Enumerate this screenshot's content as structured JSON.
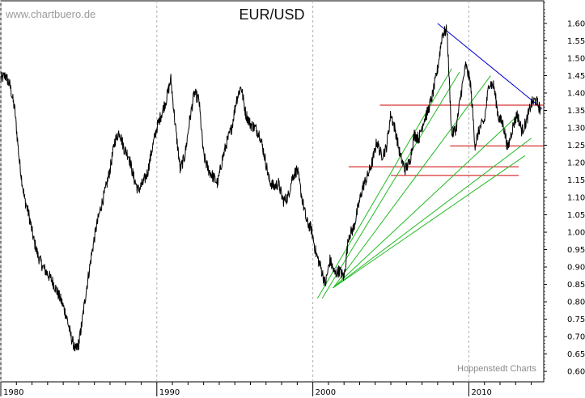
{
  "watermark": "www.chartbuero.de",
  "credit": "Hoppenstedt Charts",
  "chart_data": {
    "type": "line",
    "title": "EUR/USD",
    "xlabel": "",
    "ylabel": "",
    "x_ticks": [
      1980,
      1990,
      2000,
      2010
    ],
    "y_ticks": [
      0.6,
      0.65,
      0.7,
      0.75,
      0.8,
      0.85,
      0.9,
      0.95,
      1.0,
      1.05,
      1.1,
      1.15,
      1.2,
      1.25,
      1.3,
      1.35,
      1.4,
      1.45,
      1.5,
      1.55,
      1.6
    ],
    "xlim": [
      1980,
      2014.8
    ],
    "ylim": [
      0.57,
      1.665
    ],
    "grid": "vertical dashed at decades",
    "y_axis_side": "right",
    "series": [
      {
        "color": "#000000",
        "x": [
          1980.0,
          1980.3,
          1980.6,
          1980.9,
          1981.2,
          1981.5,
          1981.8,
          1982.1,
          1982.4,
          1982.7,
          1983.0,
          1983.3,
          1983.6,
          1983.9,
          1984.2,
          1984.5,
          1984.8,
          1985.0,
          1985.2,
          1985.5,
          1985.8,
          1986.1,
          1986.4,
          1986.7,
          1987.0,
          1987.3,
          1987.6,
          1987.9,
          1988.2,
          1988.5,
          1988.8,
          1989.1,
          1989.4,
          1989.7,
          1990.0,
          1990.3,
          1990.6,
          1990.9,
          1991.2,
          1991.5,
          1991.8,
          1992.1,
          1992.4,
          1992.7,
          1993.0,
          1993.3,
          1993.6,
          1993.9,
          1994.2,
          1994.5,
          1994.8,
          1995.1,
          1995.4,
          1995.7,
          1996.0,
          1996.3,
          1996.6,
          1996.9,
          1997.2,
          1997.5,
          1997.8,
          1998.1,
          1998.4,
          1998.7,
          1999.0,
          1999.3,
          1999.6,
          1999.9,
          2000.2,
          2000.5,
          2000.8,
          2001.1,
          2001.4,
          2001.7,
          2002.0,
          2002.3,
          2002.6,
          2002.9,
          2003.2,
          2003.5,
          2003.8,
          2004.1,
          2004.4,
          2004.7,
          2005.0,
          2005.3,
          2005.6,
          2005.9,
          2006.2,
          2006.5,
          2006.8,
          2007.1,
          2007.4,
          2007.7,
          2008.0,
          2008.3,
          2008.6,
          2008.9,
          2009.2,
          2009.5,
          2009.8,
          2010.1,
          2010.4,
          2010.7,
          2011.0,
          2011.3,
          2011.6,
          2011.9,
          2012.2,
          2012.5,
          2012.8,
          2013.1,
          2013.4,
          2013.7,
          2014.0,
          2014.3,
          2014.6
        ],
        "values": [
          1.44,
          1.45,
          1.42,
          1.35,
          1.2,
          1.1,
          1.05,
          0.98,
          0.93,
          0.9,
          0.88,
          0.86,
          0.83,
          0.8,
          0.76,
          0.7,
          0.66,
          0.68,
          0.74,
          0.84,
          0.93,
          1.01,
          1.07,
          1.12,
          1.18,
          1.26,
          1.29,
          1.24,
          1.22,
          1.16,
          1.12,
          1.14,
          1.17,
          1.24,
          1.3,
          1.34,
          1.38,
          1.44,
          1.3,
          1.18,
          1.22,
          1.32,
          1.4,
          1.38,
          1.22,
          1.18,
          1.16,
          1.14,
          1.21,
          1.26,
          1.3,
          1.38,
          1.42,
          1.34,
          1.31,
          1.3,
          1.28,
          1.22,
          1.15,
          1.13,
          1.14,
          1.09,
          1.1,
          1.16,
          1.18,
          1.1,
          1.03,
          1.01,
          0.94,
          0.9,
          0.85,
          0.92,
          0.88,
          0.89,
          0.87,
          0.99,
          1.01,
          1.07,
          1.13,
          1.16,
          1.2,
          1.26,
          1.22,
          1.24,
          1.34,
          1.29,
          1.22,
          1.18,
          1.2,
          1.28,
          1.27,
          1.32,
          1.35,
          1.4,
          1.47,
          1.57,
          1.58,
          1.28,
          1.3,
          1.4,
          1.48,
          1.43,
          1.25,
          1.3,
          1.32,
          1.43,
          1.42,
          1.33,
          1.31,
          1.24,
          1.3,
          1.34,
          1.29,
          1.32,
          1.37,
          1.38,
          1.35
        ]
      }
    ],
    "trendlines": [
      {
        "kind": "resistance",
        "color": "#0000cc",
        "x": [
          2008.0,
          2014.7
        ],
        "y": [
          1.6,
          1.355
        ]
      },
      {
        "kind": "horizontal",
        "color": "#d00000",
        "x": [
          2004.3,
          2014.8
        ],
        "y": [
          1.365,
          1.365
        ]
      },
      {
        "kind": "horizontal",
        "color": "#d00000",
        "x": [
          2008.8,
          2014.8
        ],
        "y": [
          1.248,
          1.248
        ]
      },
      {
        "kind": "horizontal",
        "color": "#d00000",
        "x": [
          2002.3,
          2013.2
        ],
        "y": [
          1.188,
          1.188
        ]
      },
      {
        "kind": "horizontal",
        "color": "#d00000",
        "x": [
          2005.0,
          2013.2
        ],
        "y": [
          1.163,
          1.163
        ]
      },
      {
        "kind": "support",
        "color": "#22bb22",
        "x": [
          2000.3,
          2008.9
        ],
        "y": [
          0.81,
          1.47
        ]
      },
      {
        "kind": "support",
        "color": "#22bb22",
        "x": [
          2000.6,
          2009.4
        ],
        "y": [
          0.81,
          1.46
        ]
      },
      {
        "kind": "support",
        "color": "#22bb22",
        "x": [
          2001.3,
          2011.4
        ],
        "y": [
          0.84,
          1.45
        ]
      },
      {
        "kind": "support",
        "color": "#22bb22",
        "x": [
          2001.3,
          2013.0
        ],
        "y": [
          0.84,
          1.33
        ]
      },
      {
        "kind": "support",
        "color": "#22bb22",
        "x": [
          2001.3,
          2013.6
        ],
        "y": [
          0.84,
          1.22
        ]
      },
      {
        "kind": "support",
        "color": "#22bb22",
        "x": [
          2001.3,
          2014.0
        ],
        "y": [
          0.84,
          1.27
        ]
      }
    ]
  }
}
